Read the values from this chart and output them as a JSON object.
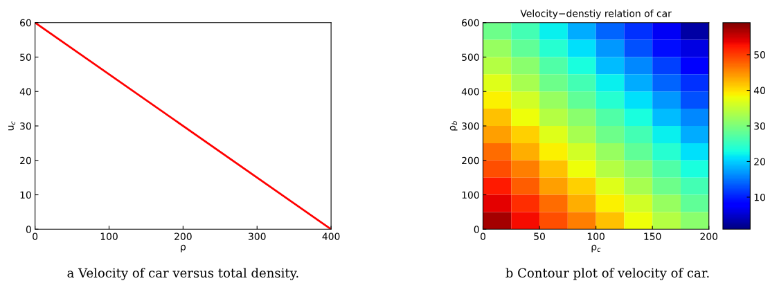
{
  "chart_data": [
    {
      "type": "line",
      "xlabel": "ρ",
      "ylabel": "u$_{c}$",
      "x": [
        0,
        400
      ],
      "series": [
        {
          "color": "#ff0000",
          "values": [
            60,
            0
          ]
        }
      ],
      "xlim": [
        0,
        400
      ],
      "xticks": [
        0,
        100,
        200,
        300,
        400
      ],
      "ylim": [
        0,
        60
      ],
      "yticks": [
        0,
        10,
        20,
        30,
        40,
        50,
        60
      ],
      "grid": false,
      "annotations": [
        "a Velocity of car versus total density."
      ]
    },
    {
      "type": "heatmap",
      "title": "Velocity−denstiy relation of car",
      "xlabel": "ρ$_{c}$",
      "ylabel": "ρ$_{b}$",
      "xlim": [
        0,
        200
      ],
      "xticks": [
        0,
        50,
        100,
        150,
        200
      ],
      "ylim": [
        0,
        600
      ],
      "yticks": [
        0,
        100,
        200,
        300,
        400,
        500,
        600
      ],
      "cells": [
        [
          29,
          26,
          22,
          18,
          14,
          11,
          7,
          3
        ],
        [
          32,
          28,
          24,
          21,
          17,
          13,
          9,
          6
        ],
        [
          34,
          31,
          27,
          23,
          19,
          16,
          12,
          8
        ],
        [
          37,
          33,
          29,
          26,
          22,
          18,
          14,
          11
        ],
        [
          39,
          36,
          32,
          28,
          24,
          21,
          17,
          13
        ],
        [
          42,
          38,
          34,
          31,
          27,
          23,
          19,
          16
        ],
        [
          44,
          41,
          37,
          33,
          29,
          26,
          22,
          18
        ],
        [
          47,
          43,
          39,
          36,
          32,
          28,
          24,
          21
        ],
        [
          49,
          46,
          42,
          38,
          34,
          31,
          27,
          23
        ],
        [
          52,
          48,
          44,
          41,
          37,
          33,
          29,
          26
        ],
        [
          54,
          51,
          47,
          43,
          39,
          36,
          32,
          28
        ],
        [
          57,
          53,
          49,
          46,
          42,
          38,
          34,
          31
        ]
      ],
      "clim": [
        1,
        59
      ],
      "cticks": [
        10,
        20,
        30,
        40,
        50
      ],
      "annotations": [
        "b Contour plot of velocity of car."
      ]
    }
  ]
}
